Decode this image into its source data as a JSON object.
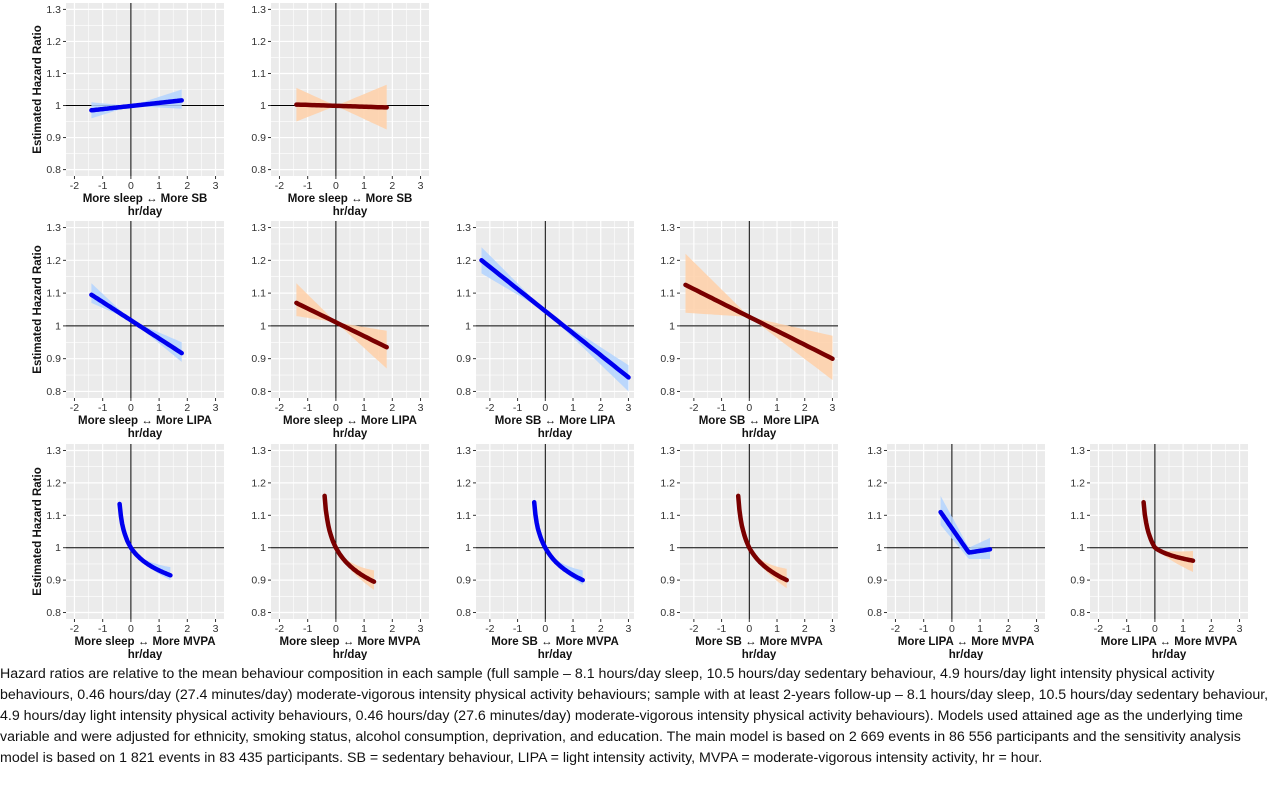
{
  "figure": {
    "y_axis_label": "Estimated Hazard Ratio",
    "x_unit_label": "hr/day",
    "colors": {
      "main_line": "#0000ee",
      "main_band": "#b3d4ff",
      "sensitivity_line": "#7a0000",
      "sensitivity_band": "#ffd0a8",
      "panel_background": "#ebebeb",
      "grid": "#ffffff"
    }
  },
  "chart_data": [
    {
      "type": "line",
      "xlabel": "More sleep ↔ More SB",
      "ylabel": "Estimated Hazard Ratio",
      "xlim": [
        -2.3,
        3.3
      ],
      "ylim": [
        0.78,
        1.32
      ],
      "x_ticks": [
        -2,
        -1,
        0,
        1,
        2,
        3
      ],
      "y_ticks": [
        0.8,
        0.9,
        1,
        1.1,
        1.2,
        1.3
      ],
      "series": [
        {
          "x": [
            -1.4,
            1.8
          ],
          "y": [
            0.985,
            1.016
          ],
          "ci_lower": [
            0.96,
            0.99
          ],
          "ci_upper": [
            1.01,
            1.05
          ]
        }
      ]
    },
    {
      "type": "line",
      "xlabel": "More sleep ↔ More SB",
      "ylabel": "",
      "xlim": [
        -2.3,
        3.3
      ],
      "ylim": [
        0.78,
        1.32
      ],
      "x_ticks": [
        -2,
        -1,
        0,
        1,
        2,
        3
      ],
      "y_ticks": [
        0.8,
        0.9,
        1,
        1.1,
        1.2,
        1.3
      ],
      "series": [
        {
          "x": [
            -1.4,
            1.8
          ],
          "y": [
            1.003,
            0.994
          ],
          "ci_lower": [
            0.95,
            0.925
          ],
          "ci_upper": [
            1.055,
            1.065
          ]
        }
      ]
    },
    {
      "type": "line",
      "xlabel": "More sleep ↔ More LIPA",
      "ylabel": "Estimated Hazard Ratio",
      "xlim": [
        -2.3,
        3.3
      ],
      "ylim": [
        0.78,
        1.32
      ],
      "x_ticks": [
        -2,
        -1,
        0,
        1,
        2,
        3
      ],
      "y_ticks": [
        0.8,
        0.9,
        1,
        1.1,
        1.2,
        1.3
      ],
      "series": [
        {
          "x": [
            -1.4,
            1.8
          ],
          "y": [
            1.095,
            0.917
          ],
          "ci_lower": [
            1.07,
            0.89
          ],
          "ci_upper": [
            1.13,
            0.95
          ]
        }
      ]
    },
    {
      "type": "line",
      "xlabel": "More sleep ↔ More LIPA",
      "ylabel": "",
      "xlim": [
        -2.3,
        3.3
      ],
      "ylim": [
        0.78,
        1.32
      ],
      "x_ticks": [
        -2,
        -1,
        0,
        1,
        2,
        3
      ],
      "y_ticks": [
        0.8,
        0.9,
        1,
        1.1,
        1.2,
        1.3
      ],
      "series": [
        {
          "x": [
            -1.4,
            1.8
          ],
          "y": [
            1.07,
            0.935
          ],
          "ci_lower": [
            1.03,
            0.87
          ],
          "ci_upper": [
            1.13,
            0.985
          ]
        }
      ]
    },
    {
      "type": "line",
      "xlabel": "More SB ↔ More LIPA",
      "ylabel": "",
      "xlim": [
        -2.5,
        3.2
      ],
      "ylim": [
        0.78,
        1.32
      ],
      "x_ticks": [
        -2,
        -1,
        0,
        1,
        2,
        3
      ],
      "y_ticks": [
        0.8,
        0.9,
        1,
        1.1,
        1.2,
        1.3
      ],
      "series": [
        {
          "x": [
            -2.3,
            3.0
          ],
          "y": [
            1.2,
            0.843
          ],
          "ci_lower": [
            1.16,
            0.8
          ],
          "ci_upper": [
            1.24,
            0.88
          ]
        }
      ]
    },
    {
      "type": "line",
      "xlabel": "More SB ↔ More LIPA",
      "ylabel": "",
      "xlim": [
        -2.5,
        3.2
      ],
      "ylim": [
        0.78,
        1.32
      ],
      "x_ticks": [
        -2,
        -1,
        0,
        1,
        2,
        3
      ],
      "y_ticks": [
        0.8,
        0.9,
        1,
        1.1,
        1.2,
        1.3
      ],
      "series": [
        {
          "x": [
            -2.3,
            3.0
          ],
          "y": [
            1.125,
            0.9
          ],
          "ci_lower": [
            1.04,
            0.835
          ],
          "ci_upper": [
            1.22,
            0.97
          ]
        }
      ]
    },
    {
      "type": "line",
      "xlabel": "More sleep ↔ More MVPA",
      "ylabel": "Estimated Hazard Ratio",
      "xlim": [
        -2.3,
        3.3
      ],
      "ylim": [
        0.78,
        1.32
      ],
      "x_ticks": [
        -2,
        -1,
        0,
        1,
        2,
        3
      ],
      "y_ticks": [
        0.8,
        0.9,
        1,
        1.1,
        1.2,
        1.3
      ],
      "series": [
        {
          "x": [
            -0.4,
            1.4
          ],
          "y": [
            1.135,
            0.915
          ],
          "ci_lower": [
            1.09,
            0.9
          ],
          "ci_upper": [
            1.19,
            0.94
          ]
        }
      ]
    },
    {
      "type": "line",
      "xlabel": "More sleep ↔ More MVPA",
      "ylabel": "",
      "xlim": [
        -2.3,
        3.3
      ],
      "ylim": [
        0.78,
        1.32
      ],
      "x_ticks": [
        -2,
        -1,
        0,
        1,
        2,
        3
      ],
      "y_ticks": [
        0.8,
        0.9,
        1,
        1.1,
        1.2,
        1.3
      ],
      "series": [
        {
          "x": [
            -0.4,
            1.35
          ],
          "y": [
            1.16,
            0.895
          ],
          "ci_lower": [
            1.09,
            0.87
          ],
          "ci_upper": [
            1.23,
            0.93
          ]
        }
      ]
    },
    {
      "type": "line",
      "xlabel": "More SB ↔ More MVPA",
      "ylabel": "",
      "xlim": [
        -2.5,
        3.2
      ],
      "ylim": [
        0.78,
        1.32
      ],
      "x_ticks": [
        -2,
        -1,
        0,
        1,
        2,
        3
      ],
      "y_ticks": [
        0.8,
        0.9,
        1,
        1.1,
        1.2,
        1.3
      ],
      "series": [
        {
          "x": [
            -0.4,
            1.35
          ],
          "y": [
            1.14,
            0.9
          ],
          "ci_lower": [
            1.1,
            0.885
          ],
          "ci_upper": [
            1.2,
            0.93
          ]
        }
      ]
    },
    {
      "type": "line",
      "xlabel": "More SB ↔ More MVPA",
      "ylabel": "",
      "xlim": [
        -2.5,
        3.2
      ],
      "ylim": [
        0.78,
        1.32
      ],
      "x_ticks": [
        -2,
        -1,
        0,
        1,
        2,
        3
      ],
      "y_ticks": [
        0.8,
        0.9,
        1,
        1.1,
        1.2,
        1.3
      ],
      "series": [
        {
          "x": [
            -0.4,
            1.35
          ],
          "y": [
            1.16,
            0.9
          ],
          "ci_lower": [
            1.1,
            0.875
          ],
          "ci_upper": [
            1.24,
            0.935
          ]
        }
      ]
    },
    {
      "type": "line",
      "xlabel": "More LIPA ↔ More MVPA",
      "ylabel": "",
      "xlim": [
        -2.3,
        3.3
      ],
      "ylim": [
        0.78,
        1.32
      ],
      "x_ticks": [
        -2,
        -1,
        0,
        1,
        2,
        3
      ],
      "y_ticks": [
        0.8,
        0.9,
        1,
        1.1,
        1.2,
        1.3
      ],
      "series": [
        {
          "x": [
            -0.4,
            0.6,
            1.35
          ],
          "y": [
            1.11,
            0.985,
            0.995
          ],
          "ci_lower": [
            1.07,
            0.965,
            0.965
          ],
          "ci_upper": [
            1.16,
            1.0,
            1.03
          ]
        }
      ]
    },
    {
      "type": "line",
      "xlabel": "More LIPA ↔ More MVPA",
      "ylabel": "",
      "xlim": [
        -2.3,
        3.3
      ],
      "ylim": [
        0.78,
        1.32
      ],
      "x_ticks": [
        -2,
        -1,
        0,
        1,
        2,
        3
      ],
      "y_ticks": [
        0.8,
        0.9,
        1,
        1.1,
        1.2,
        1.3
      ],
      "series": [
        {
          "x": [
            -0.4,
            1.35
          ],
          "y": [
            1.14,
            0.96
          ],
          "ci_lower": [
            1.07,
            0.925
          ],
          "ci_upper": [
            1.21,
            0.99
          ]
        }
      ]
    }
  ],
  "caption": "Hazard ratios are relative to the mean behaviour composition in each sample (full sample – 8.1 hours/day sleep, 10.5 hours/day sedentary behaviour, 4.9 hours/day light intensity physical activity behaviours, 0.46 hours/day (27.4 minutes/day) moderate-vigorous intensity physical activity behaviours; sample with at least 2-years follow-up – 8.1 hours/day sleep, 10.5 hours/day sedentary behaviour, 4.9 hours/day light intensity physical activity behaviours, 0.46 hours/day (27.6 minutes/day) moderate-vigorous intensity physical activity behaviours). Models used attained age as the underlying time variable and were adjusted for ethnicity, smoking status, alcohol consumption, deprivation, and education. The main model is based on 2 669 events in 86 556 participants and the sensitivity analysis model is based on 1 821 events in 83 435 participants. SB = sedentary behaviour, LIPA = light intensity activity, MVPA = moderate-vigorous intensity activity, hr = hour."
}
